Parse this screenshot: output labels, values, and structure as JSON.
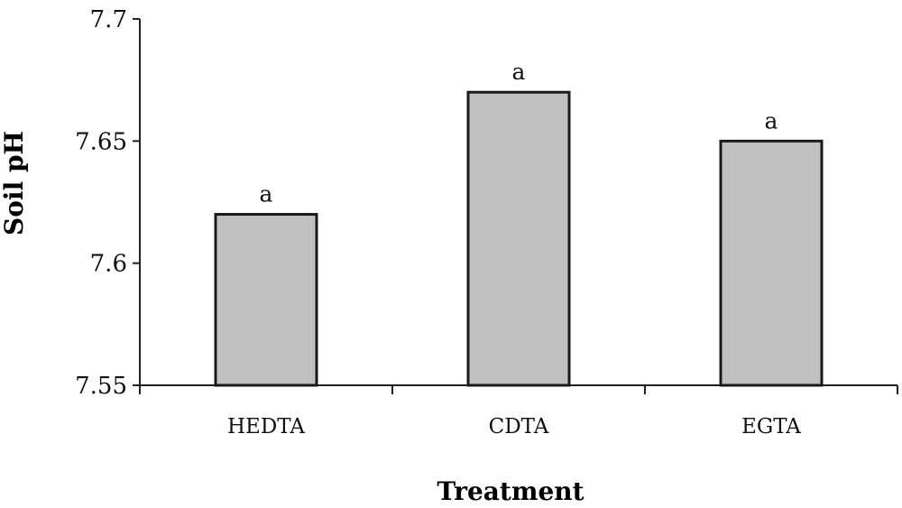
{
  "chart_data": {
    "type": "bar",
    "title": "",
    "xlabel": "Treatment",
    "ylabel": "Soil pH",
    "categories": [
      "HEDTA",
      "CDTA",
      "EGTA"
    ],
    "values": [
      7.62,
      7.67,
      7.65
    ],
    "data_labels": [
      "a",
      "a",
      "a"
    ],
    "ylim": [
      7.55,
      7.7
    ],
    "yticks": [
      7.55,
      7.6,
      7.65,
      7.7
    ],
    "ytick_labels": [
      "7.55",
      "7.6",
      "7.65",
      "7.7"
    ],
    "grid": false,
    "legend": "none",
    "bar_color": "#c0c0c0",
    "bar_edge_color": "#1a1a1a"
  }
}
